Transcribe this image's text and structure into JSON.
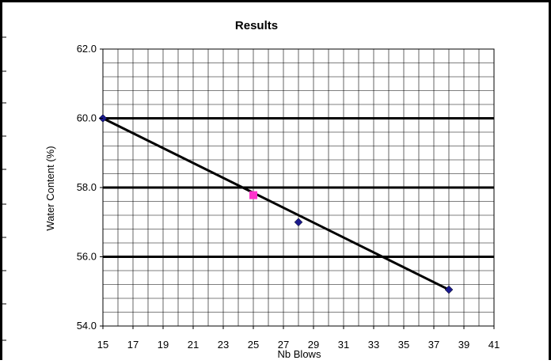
{
  "chart_data": {
    "type": "scatter",
    "title": "Results",
    "xlabel": "Nb Blows",
    "ylabel": "Water Content (%)",
    "xlim": [
      15,
      41
    ],
    "ylim": [
      54.0,
      62.0
    ],
    "x_ticks": [
      "15",
      "17",
      "19",
      "21",
      "23",
      "25",
      "27",
      "29",
      "31",
      "33",
      "35",
      "37",
      "39",
      "41"
    ],
    "y_ticks": [
      "54.0",
      "56.0",
      "58.0",
      "60.0",
      "62.0"
    ],
    "grid": true,
    "legend": "none",
    "series": [
      {
        "type": "scatter",
        "marker": "diamond",
        "color": "#1a1a8c",
        "points": [
          {
            "x": 15,
            "y": 60.0
          },
          {
            "x": 28,
            "y": 57.0
          },
          {
            "x": 38,
            "y": 55.05
          }
        ]
      },
      {
        "type": "scatter",
        "marker": "square",
        "color": "#ff33cc",
        "points": [
          {
            "x": 25,
            "y": 57.78
          }
        ]
      },
      {
        "type": "line",
        "color": "#000000",
        "points": [
          {
            "x": 15,
            "y": 60.0
          },
          {
            "x": 38,
            "y": 55.05
          }
        ]
      }
    ],
    "reference_lines_y": [
      56.0,
      58.0,
      60.0
    ]
  }
}
